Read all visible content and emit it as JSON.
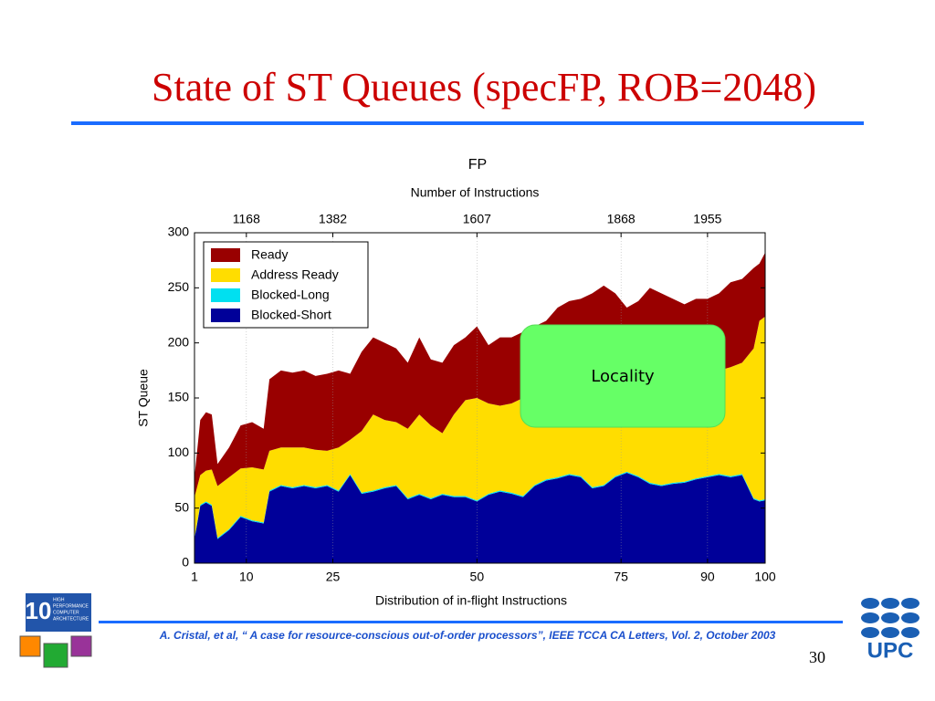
{
  "title": "State of ST Queues (specFP, ROB=2048)",
  "chart_data": {
    "type": "stacked_area",
    "title": "FP",
    "x2_label": "Number of Instructions",
    "xlabel": "Distribution of in-flight Instructions",
    "ylabel": "ST Queue",
    "annotation": "Locality",
    "legend": "upper left",
    "grid": true,
    "xlim": [
      1,
      100
    ],
    "ylim": [
      0,
      300
    ],
    "xticks": [
      1,
      10,
      25,
      50,
      75,
      90,
      100
    ],
    "yticks": [
      0,
      50,
      100,
      150,
      200,
      250,
      300
    ],
    "x2ticks": [
      {
        "value": 10,
        "label": "1168"
      },
      {
        "value": 25,
        "label": "1382"
      },
      {
        "value": 50,
        "label": "1607"
      },
      {
        "value": 75,
        "label": "1868"
      },
      {
        "value": 90,
        "label": "1955"
      }
    ],
    "x": [
      1,
      2,
      3,
      4,
      5,
      7,
      9,
      11,
      13,
      14,
      16,
      18,
      20,
      22,
      24,
      26,
      28,
      30,
      32,
      34,
      36,
      38,
      40,
      42,
      44,
      46,
      48,
      50,
      52,
      54,
      56,
      58,
      60,
      62,
      64,
      66,
      68,
      70,
      72,
      74,
      76,
      78,
      80,
      82,
      84,
      86,
      88,
      90,
      92,
      94,
      96,
      98,
      99,
      100
    ],
    "series": [
      {
        "name": "Ready",
        "color": "#990000",
        "values": [
          18,
          50,
          53,
          50,
          20,
          27,
          39,
          41,
          37,
          65,
          70,
          68,
          70,
          67,
          70,
          70,
          60,
          72,
          70,
          70,
          67,
          60,
          70,
          60,
          64,
          63,
          57,
          65,
          53,
          62,
          60,
          60,
          63,
          65,
          74,
          78,
          78,
          85,
          90,
          80,
          67,
          70,
          82,
          75,
          70,
          63,
          68,
          66,
          70,
          77,
          76,
          73,
          52,
          58
        ]
      },
      {
        "name": "Address Ready",
        "color": "#ffdd00",
        "values": [
          37,
          27,
          28,
          32,
          47,
          47,
          43,
          48,
          48,
          36,
          34,
          36,
          34,
          34,
          31,
          39,
          31,
          56,
          69,
          61,
          57,
          63,
          72,
          66,
          55,
          74,
          87,
          93,
          82,
          77,
          81,
          89,
          81,
          79,
          80,
          79,
          83,
          91,
          91,
          86,
          82,
          89,
          95,
          99,
          97,
          98,
          95,
          95,
          94,
          99,
          101,
          136,
          163,
          166
        ]
      },
      {
        "name": "Blocked-Long",
        "color": "#00e0f0",
        "values": [
          1,
          1,
          1,
          1,
          1,
          1,
          1,
          1,
          1,
          1,
          1,
          1,
          1,
          1,
          1,
          1,
          1,
          1,
          1,
          1,
          1,
          1,
          1,
          1,
          1,
          1,
          1,
          1,
          1,
          1,
          1,
          1,
          1,
          1,
          1,
          1,
          1,
          1,
          1,
          1,
          1,
          1,
          1,
          1,
          1,
          1,
          1,
          1,
          1,
          1,
          1,
          1,
          1,
          1
        ]
      },
      {
        "name": "Blocked-Short",
        "color": "#000099",
        "values": [
          22,
          52,
          55,
          52,
          22,
          30,
          42,
          38,
          36,
          65,
          70,
          68,
          70,
          68,
          70,
          65,
          80,
          63,
          65,
          68,
          70,
          58,
          62,
          58,
          62,
          60,
          60,
          56,
          62,
          65,
          63,
          60,
          70,
          75,
          77,
          80,
          78,
          68,
          70,
          78,
          82,
          78,
          72,
          70,
          72,
          73,
          76,
          78,
          80,
          78,
          80,
          58,
          56,
          57
        ]
      }
    ]
  },
  "footer": {
    "citation": "A. Cristal, et al, “ A case for resource-conscious out-of-order processors”, IEEE TCCA CA Letters, Vol. 2, October 2003",
    "page_number": "30",
    "hpca_logo": {
      "number": "10",
      "lines": [
        "HIGH",
        "PERFORMANCE",
        "COMPUTER",
        "ARCHITECTURE"
      ]
    },
    "upc_logo": "UPC"
  }
}
